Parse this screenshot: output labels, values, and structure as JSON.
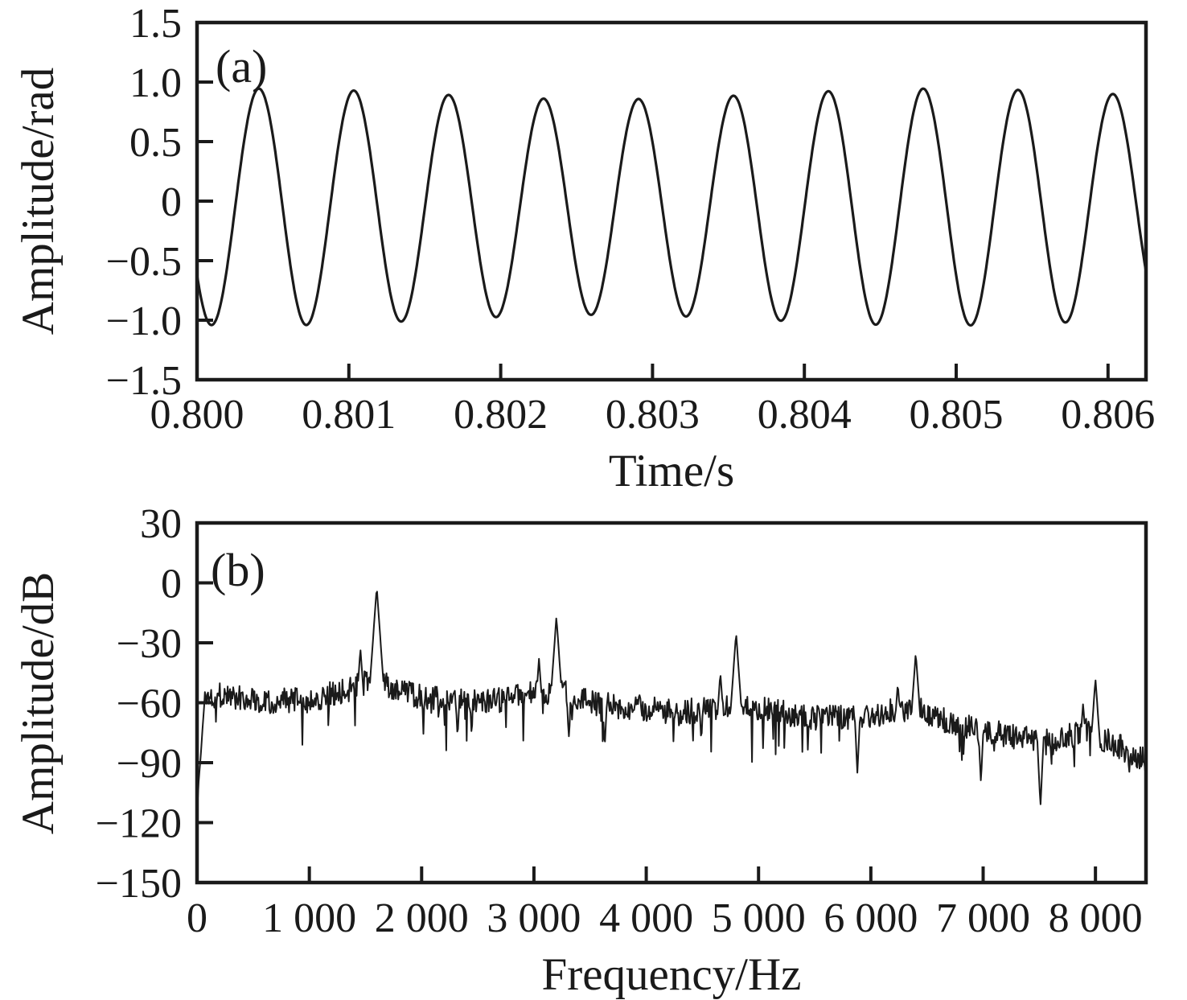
{
  "figure": {
    "background": "#ffffff",
    "stroke_color": "#1a1a1a",
    "description": "Two stacked panels: (a) time-domain phase waveform, (b) amplitude spectrum"
  },
  "chart_data": [
    {
      "type": "line",
      "panel": "a",
      "label": "(a)",
      "xlabel": "Time/s",
      "ylabel": "Amplitude/rad",
      "xlim": [
        0.8,
        0.80625
      ],
      "ylim": [
        -1.5,
        1.5
      ],
      "grid": false,
      "legend": "none",
      "x_ticks": [
        {
          "v": 0.8,
          "label": "0.800"
        },
        {
          "v": 0.801,
          "label": "0.801"
        },
        {
          "v": 0.802,
          "label": "0.802"
        },
        {
          "v": 0.803,
          "label": "0.803"
        },
        {
          "v": 0.804,
          "label": "0.804"
        },
        {
          "v": 0.805,
          "label": "0.805"
        },
        {
          "v": 0.806,
          "label": "0.806"
        }
      ],
      "y_ticks": [
        {
          "v": 1.5,
          "label": "1.5"
        },
        {
          "v": 1.0,
          "label": "1.0"
        },
        {
          "v": 0.5,
          "label": "0.5"
        },
        {
          "v": 0.0,
          "label": "0"
        },
        {
          "v": -0.5,
          "label": "−0.5"
        },
        {
          "v": -1.0,
          "label": "−1.0"
        },
        {
          "v": -1.5,
          "label": "−1.5"
        }
      ],
      "signal": {
        "kind": "sine",
        "freq_hz": 1600,
        "offset_rad": -0.05,
        "amp_rad": 0.95,
        "amp_mod_rad": 0.045,
        "amp_mod_period_s": 0.0045,
        "amp_mod_center_s": 0.8004,
        "first_min_time_s": 0.800095,
        "points": 1200,
        "approx_peak_rad": 0.9,
        "approx_trough_rad": -1.03
      }
    },
    {
      "type": "line",
      "panel": "b",
      "label": "(b)",
      "xlabel": "Frequency/Hz",
      "ylabel": "Amplitude/dB",
      "xlim": [
        0,
        8450
      ],
      "ylim": [
        -150,
        30
      ],
      "grid": false,
      "legend": "none",
      "x_ticks": [
        {
          "v": 0,
          "label": "0"
        },
        {
          "v": 1000,
          "label": "1 000"
        },
        {
          "v": 2000,
          "label": "2 000"
        },
        {
          "v": 3000,
          "label": "3 000"
        },
        {
          "v": 4000,
          "label": "4 000"
        },
        {
          "v": 5000,
          "label": "5 000"
        },
        {
          "v": 6000,
          "label": "6 000"
        },
        {
          "v": 7000,
          "label": "7 000"
        },
        {
          "v": 8000,
          "label": "8 000"
        }
      ],
      "y_ticks": [
        {
          "v": 30,
          "label": "30"
        },
        {
          "v": 0,
          "label": "0"
        },
        {
          "v": -30,
          "label": "−30"
        },
        {
          "v": -60,
          "label": "−60"
        },
        {
          "v": -90,
          "label": "−90"
        },
        {
          "v": -120,
          "label": "−120"
        },
        {
          "v": -150,
          "label": "−150"
        }
      ],
      "spectrum": {
        "seed": 1337,
        "step_hz": 7,
        "noise_db": 6.5,
        "spike_chance": 0.045,
        "ramp": {
          "end_hz": 70,
          "start_db": -112
        },
        "baseline_db": [
          [
            0,
            -57
          ],
          [
            250,
            -56
          ],
          [
            600,
            -59
          ],
          [
            1000,
            -59
          ],
          [
            1300,
            -54
          ],
          [
            1500,
            -50
          ],
          [
            1650,
            -51
          ],
          [
            1850,
            -55
          ],
          [
            2100,
            -58
          ],
          [
            2600,
            -60
          ],
          [
            3000,
            -55
          ],
          [
            3300,
            -55
          ],
          [
            3600,
            -61
          ],
          [
            4000,
            -63
          ],
          [
            4300,
            -65
          ],
          [
            4700,
            -61
          ],
          [
            5000,
            -62
          ],
          [
            5400,
            -67
          ],
          [
            5800,
            -68
          ],
          [
            6200,
            -64
          ],
          [
            6450,
            -63
          ],
          [
            6700,
            -70
          ],
          [
            7000,
            -74
          ],
          [
            7300,
            -77
          ],
          [
            7600,
            -80
          ],
          [
            7900,
            -74
          ],
          [
            8050,
            -78
          ],
          [
            8250,
            -83
          ],
          [
            8450,
            -88
          ]
        ],
        "harmonic_peaks_db": [
          [
            1600,
            -2
          ],
          [
            1455,
            -33
          ],
          [
            1530,
            -45
          ],
          [
            3200,
            -17
          ],
          [
            3045,
            -38
          ],
          [
            4800,
            -25
          ],
          [
            4660,
            -45
          ],
          [
            6400,
            -35
          ],
          [
            6240,
            -50
          ],
          [
            8000,
            -48
          ],
          [
            7890,
            -60
          ]
        ],
        "peak_slope_db_per_hz": 0.8,
        "notches_db": [
          [
            2320,
            -78
          ],
          [
            3310,
            -78
          ],
          [
            3630,
            -83
          ],
          [
            4490,
            -80
          ],
          [
            5880,
            -95
          ],
          [
            6980,
            -100
          ],
          [
            7510,
            -112
          ],
          [
            8300,
            -97
          ]
        ],
        "notch_slope_db_per_hz": 1.2
      }
    }
  ]
}
